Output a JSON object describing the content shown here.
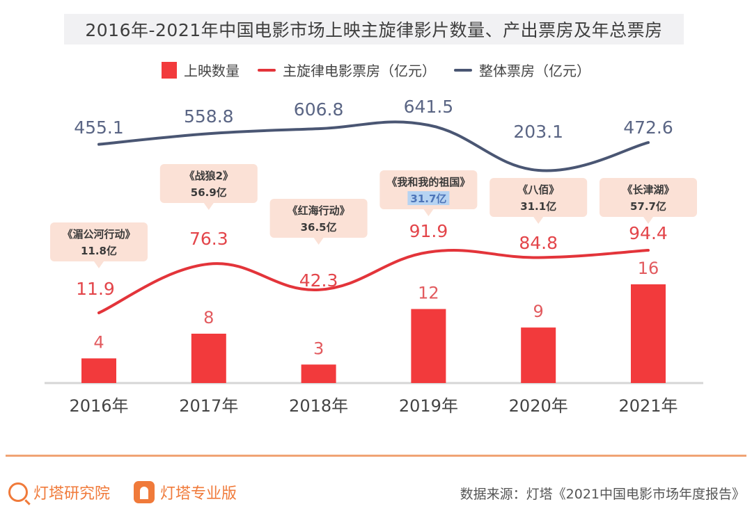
{
  "chart_data": {
    "type": "bar",
    "title": "2016年-2021年中国电影市场上映主旋律影片数量、产出票房及年总票房",
    "categories": [
      "2016年",
      "2017年",
      "2018年",
      "2019年",
      "2020年",
      "2021年"
    ],
    "legend": {
      "placement": "top-center",
      "entries": [
        "上映数量",
        "主旋律电影票房（亿元）",
        "整体票房（亿元）"
      ]
    },
    "series": [
      {
        "name": "上映数量",
        "type": "bar",
        "color": "#f23a3c",
        "values": [
          4,
          8,
          3,
          12,
          9,
          16
        ]
      },
      {
        "name": "主旋律电影票房（亿元）",
        "type": "line",
        "color": "#e3343a",
        "values": [
          11.9,
          76.3,
          42.3,
          91.9,
          84.8,
          94.4
        ]
      },
      {
        "name": "整体票房（亿元）",
        "type": "line",
        "color": "#4a5673",
        "values": [
          455.1,
          558.8,
          606.8,
          641.5,
          203.1,
          472.6
        ]
      }
    ],
    "annotations": [
      {
        "category": "2016年",
        "film": "《湄公河行动》",
        "box_office": "11.8亿"
      },
      {
        "category": "2017年",
        "film": "《战狼2》",
        "box_office": "56.9亿"
      },
      {
        "category": "2018年",
        "film": "《红海行动》",
        "box_office": "36.5亿"
      },
      {
        "category": "2019年",
        "film": "《我和我的祖国》",
        "box_office": "31.7亿"
      },
      {
        "category": "2020年",
        "film": "《八佰》",
        "box_office": "31.1亿"
      },
      {
        "category": "2021年",
        "film": "《长津湖》",
        "box_office": "57.7亿"
      }
    ],
    "xlabel": "",
    "ylabel": "",
    "grid": false
  },
  "footer": {
    "brand1": "灯塔研究院",
    "brand2": "灯塔专业版",
    "source": "数据来源：灯塔《2021中国电影市场年度报告》"
  },
  "colors": {
    "accent": "#f07a3a",
    "bar": "#f23a3c",
    "annotation_bg": "#fbe1d6"
  }
}
